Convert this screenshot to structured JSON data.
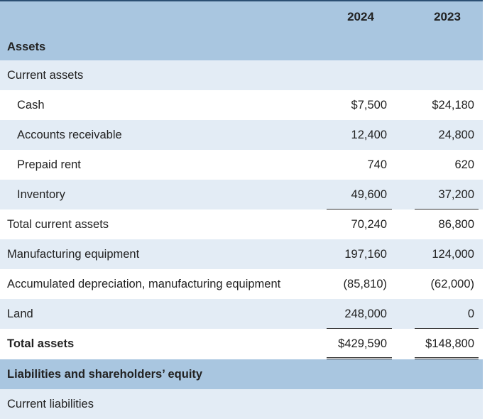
{
  "columns": {
    "year1": "2024",
    "year2": "2023"
  },
  "sections": {
    "assets": "Assets",
    "current_assets": "Current assets",
    "liabilities_equity": "Liabilities and shareholders’ equity",
    "current_liabilities": "Current liabilities"
  },
  "rows": {
    "cash": {
      "label": "Cash",
      "v2024": "$7,500",
      "v2023": "$24,180"
    },
    "ar": {
      "label": "Accounts receivable",
      "v2024": "12,400",
      "v2023": "24,800"
    },
    "prepaid": {
      "label": "Prepaid rent",
      "v2024": "740",
      "v2023": "620"
    },
    "inventory": {
      "label": "Inventory",
      "v2024": "49,600",
      "v2023": "37,200"
    },
    "tca": {
      "label": "Total current assets",
      "v2024": "70,240",
      "v2023": "86,800"
    },
    "mfg": {
      "label": "Manufacturing equipment",
      "v2024": "197,160",
      "v2023": "124,000"
    },
    "accdep": {
      "label": "Accumulated depreciation, manufacturing equipment",
      "v2024": "(85,810)",
      "v2023": "(62,000)"
    },
    "land": {
      "label": "Land",
      "v2024": "248,000",
      "v2023": "0"
    },
    "total": {
      "label": "Total assets",
      "v2024": "$429,590",
      "v2023": "$148,800"
    }
  }
}
